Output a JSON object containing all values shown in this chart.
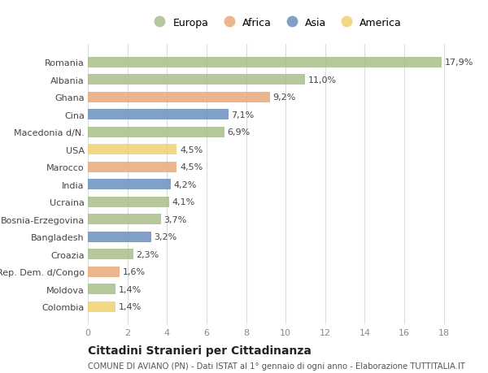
{
  "categories": [
    "Romania",
    "Albania",
    "Ghana",
    "Cina",
    "Macedonia d/N.",
    "USA",
    "Marocco",
    "India",
    "Ucraina",
    "Bosnia-Erzegovina",
    "Bangladesh",
    "Croazia",
    "Rep. Dem. d/Congo",
    "Moldova",
    "Colombia"
  ],
  "values": [
    17.9,
    11.0,
    9.2,
    7.1,
    6.9,
    4.5,
    4.5,
    4.2,
    4.1,
    3.7,
    3.2,
    2.3,
    1.6,
    1.4,
    1.4
  ],
  "labels": [
    "17,9%",
    "11,0%",
    "9,2%",
    "7,1%",
    "6,9%",
    "4,5%",
    "4,5%",
    "4,2%",
    "4,1%",
    "3,7%",
    "3,2%",
    "2,3%",
    "1,6%",
    "1,4%",
    "1,4%"
  ],
  "continents": [
    "Europa",
    "Europa",
    "Africa",
    "Asia",
    "Europa",
    "America",
    "Africa",
    "Asia",
    "Europa",
    "Europa",
    "Asia",
    "Europa",
    "Africa",
    "Europa",
    "America"
  ],
  "continent_colors": {
    "Europa": "#a8bf8a",
    "Africa": "#e8aa7a",
    "Asia": "#6b8fbf",
    "America": "#f0d070"
  },
  "legend_order": [
    "Europa",
    "Africa",
    "Asia",
    "America"
  ],
  "title": "Cittadini Stranieri per Cittadinanza",
  "subtitle": "COMUNE DI AVIANO (PN) - Dati ISTAT al 1° gennaio di ogni anno - Elaborazione TUTTITALIA.IT",
  "xlim": [
    0,
    19
  ],
  "xticks": [
    0,
    2,
    4,
    6,
    8,
    10,
    12,
    14,
    16,
    18
  ],
  "bg_color": "#ffffff",
  "grid_color": "#dddddd",
  "bar_height": 0.6
}
